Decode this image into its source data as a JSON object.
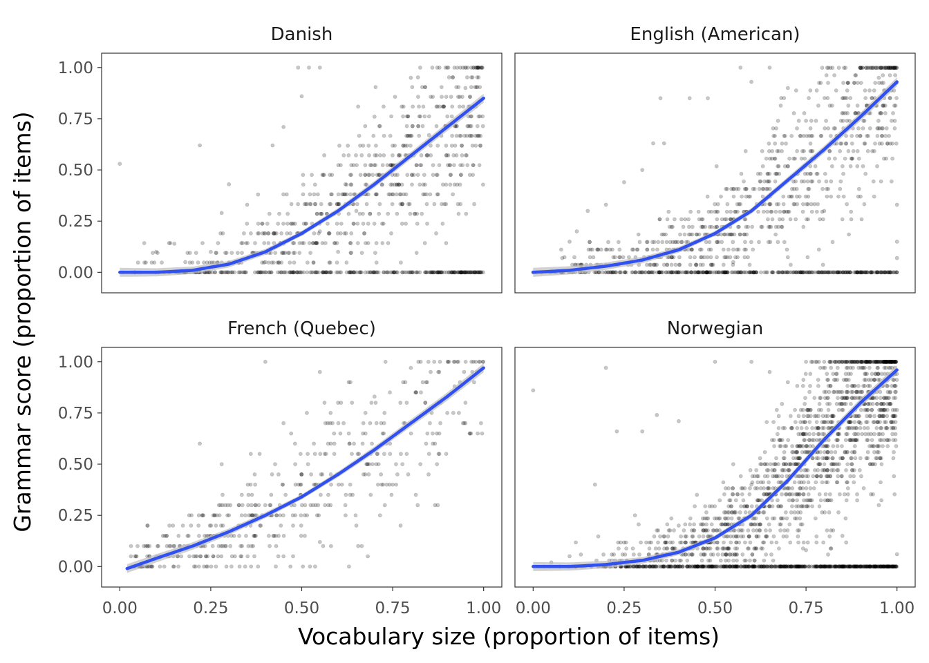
{
  "chart_data": {
    "type": "scatter",
    "xlabel": "Vocabulary size (proportion of items)",
    "ylabel": "Grammar score (proportion of items)",
    "xlim": [
      -0.05,
      1.05
    ],
    "ylim": [
      -0.1,
      1.07
    ],
    "x_ticks": [
      "0.00",
      "0.25",
      "0.50",
      "0.75",
      "1.00"
    ],
    "y_ticks": [
      "0.00",
      "0.25",
      "0.50",
      "0.75",
      "1.00"
    ],
    "grid": false,
    "point_color": "#000000",
    "point_opacity": 0.22,
    "fit_color": "#3050f0",
    "ci_color": "#bdbdbd",
    "panels": [
      {
        "title": "Danish",
        "fit": {
          "x": [
            0.0,
            0.1,
            0.2,
            0.3,
            0.4,
            0.5,
            0.6,
            0.7,
            0.8,
            0.9,
            1.0
          ],
          "y": [
            0.0,
            0.0,
            0.01,
            0.04,
            0.1,
            0.19,
            0.3,
            0.43,
            0.57,
            0.71,
            0.85
          ]
        },
        "points": [
          [
            0.0,
            0.53
          ],
          [
            0.22,
            0.62
          ],
          [
            0.42,
            0.62
          ],
          [
            0.49,
            1.0
          ],
          [
            0.52,
            1.0
          ],
          [
            0.5,
            0.86
          ],
          [
            0.55,
            1.0
          ],
          [
            0.45,
            0.71
          ],
          [
            0.3,
            0.43
          ],
          [
            0.28,
            0.29
          ],
          [
            0.35,
            0.33
          ],
          [
            0.38,
            0.38
          ],
          [
            0.15,
            0.14
          ],
          [
            0.1,
            0.1
          ],
          [
            0.18,
            0.05
          ],
          [
            0.25,
            0.1
          ],
          [
            0.62,
            0.43
          ],
          [
            0.7,
            0.76
          ],
          [
            0.8,
            0.95
          ],
          [
            0.9,
            1.0
          ],
          [
            0.95,
            0.9
          ],
          [
            0.85,
            0.67
          ],
          [
            0.75,
            0.52
          ],
          [
            0.65,
            0.3
          ],
          [
            0.55,
            0.2
          ],
          [
            0.6,
            0.1
          ],
          [
            0.45,
            0.14
          ],
          [
            0.4,
            0.05
          ]
        ]
      },
      {
        "title": "English (American)",
        "fit": {
          "x": [
            0.0,
            0.1,
            0.2,
            0.3,
            0.4,
            0.5,
            0.6,
            0.7,
            0.8,
            0.9,
            1.0
          ],
          "y": [
            0.0,
            0.01,
            0.03,
            0.06,
            0.11,
            0.19,
            0.3,
            0.45,
            0.6,
            0.76,
            0.93
          ]
        },
        "points": [
          [
            0.0,
            0.0
          ],
          [
            0.35,
            0.85
          ],
          [
            0.43,
            0.85
          ],
          [
            0.48,
            0.85
          ],
          [
            0.57,
            1.0
          ],
          [
            0.6,
            0.93
          ],
          [
            0.65,
            1.0
          ],
          [
            0.7,
            0.9
          ],
          [
            0.33,
            0.63
          ],
          [
            0.36,
            0.63
          ],
          [
            0.3,
            0.5
          ],
          [
            0.25,
            0.44
          ],
          [
            0.2,
            0.33
          ],
          [
            0.15,
            0.3
          ],
          [
            0.12,
            0.2
          ],
          [
            0.1,
            0.15
          ],
          [
            0.08,
            0.07
          ],
          [
            0.75,
            0.74
          ],
          [
            0.85,
            0.85
          ],
          [
            0.95,
            0.95
          ],
          [
            1.0,
            0.33
          ],
          [
            1.0,
            0.15
          ],
          [
            1.0,
            0.07
          ],
          [
            0.9,
            0.37
          ],
          [
            0.8,
            0.3
          ],
          [
            0.5,
            0.22
          ],
          [
            0.55,
            0.05
          ]
        ]
      },
      {
        "title": "French (Quebec)",
        "fit": {
          "x": [
            0.02,
            0.1,
            0.2,
            0.3,
            0.4,
            0.5,
            0.6,
            0.7,
            0.8,
            0.9,
            1.0
          ],
          "y": [
            -0.01,
            0.04,
            0.1,
            0.17,
            0.25,
            0.34,
            0.45,
            0.57,
            0.7,
            0.83,
            0.97
          ]
        },
        "points": [
          [
            0.4,
            1.0
          ],
          [
            0.22,
            0.6
          ],
          [
            0.28,
            0.5
          ],
          [
            0.36,
            0.55
          ],
          [
            0.45,
            0.7
          ],
          [
            0.55,
            0.95
          ],
          [
            0.63,
            0.0
          ],
          [
            0.6,
            0.8
          ],
          [
            0.7,
            0.83
          ],
          [
            0.8,
            0.97
          ],
          [
            0.88,
            1.0
          ],
          [
            0.95,
            0.7
          ],
          [
            0.85,
            0.55
          ],
          [
            0.75,
            0.4
          ],
          [
            0.65,
            0.2
          ],
          [
            0.55,
            0.12
          ],
          [
            0.45,
            0.05
          ],
          [
            0.38,
            0.0
          ],
          [
            0.3,
            0.25
          ],
          [
            0.25,
            0.15
          ],
          [
            0.15,
            0.1
          ],
          [
            0.1,
            0.05
          ],
          [
            0.05,
            0.0
          ],
          [
            0.5,
            0.45
          ],
          [
            0.58,
            0.6
          ],
          [
            0.48,
            0.3
          ],
          [
            0.68,
            0.5
          ],
          [
            0.78,
            0.7
          ],
          [
            0.92,
            0.88
          ]
        ]
      },
      {
        "title": "Norwegian",
        "fit": {
          "x": [
            0.0,
            0.1,
            0.2,
            0.3,
            0.4,
            0.5,
            0.6,
            0.7,
            0.8,
            0.9,
            1.0
          ],
          "y": [
            0.0,
            0.0,
            0.01,
            0.03,
            0.07,
            0.14,
            0.25,
            0.42,
            0.62,
            0.8,
            0.96
          ]
        },
        "points": [
          [
            0.0,
            0.86
          ],
          [
            0.2,
            0.97
          ],
          [
            0.23,
            0.66
          ],
          [
            0.3,
            0.66
          ],
          [
            0.34,
            0.74
          ],
          [
            0.4,
            0.71
          ],
          [
            0.17,
            0.4
          ],
          [
            0.28,
            0.25
          ],
          [
            0.5,
            1.0
          ],
          [
            0.6,
            1.0
          ],
          [
            0.65,
            0.95
          ],
          [
            0.7,
            0.9
          ],
          [
            0.75,
            1.0
          ],
          [
            0.8,
            1.0
          ],
          [
            0.9,
            1.0
          ],
          [
            1.0,
            0.06
          ],
          [
            0.95,
            0.3
          ],
          [
            0.85,
            0.15
          ],
          [
            0.75,
            0.08
          ],
          [
            0.1,
            0.05
          ],
          [
            0.05,
            0.02
          ],
          [
            0.4,
            0.2
          ],
          [
            0.45,
            0.35
          ],
          [
            0.55,
            0.5
          ],
          [
            0.6,
            0.4
          ],
          [
            0.9,
            0.7
          ],
          [
            0.98,
            0.85
          ]
        ]
      }
    ]
  }
}
